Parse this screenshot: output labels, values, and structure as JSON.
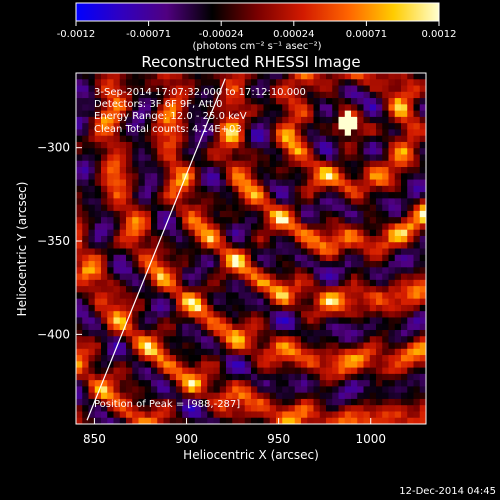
{
  "chart_data": {
    "type": "heatmap",
    "title": "Reconstructed RHESSI Image",
    "xlabel": "Heliocentric X (arcsec)",
    "ylabel": "Heliocentric Y (arcsec)",
    "xlim": [
      840,
      1030
    ],
    "ylim": [
      -448,
      -260
    ],
    "x_ticks": [
      850,
      900,
      950,
      1000
    ],
    "y_ticks": [
      -300,
      -350,
      -400
    ],
    "colorbar": {
      "ticks": [
        "-0.0012",
        "-0.00071",
        "-0.00024",
        "0.00024",
        "0.00071",
        "0.0012"
      ],
      "range": [
        -0.0012,
        0.0012
      ],
      "label": "(photons cm⁻² s⁻¹ asec⁻²)",
      "colormap": [
        "#0000ff",
        "#3000c0",
        "#500080",
        "#000000",
        "#7a0000",
        "#d21a00",
        "#ff6400",
        "#ffcc00",
        "#ffffd0"
      ]
    },
    "annotations": [
      "3-Sep-2014 17:07:32.000 to 17:12:10.000",
      "Detectors: 3F 6F 9F, Att 0",
      "Energy Range: 12.0 - 25.0 keV",
      "Clean     Total counts: 4.14E+03"
    ],
    "peak_label": "Position of Peak = [988,-287]",
    "limb_line": [
      [
        846,
        -446
      ],
      [
        921,
        -263
      ]
    ]
  },
  "footer": {
    "date": "12-Dec-2014 04:45"
  }
}
